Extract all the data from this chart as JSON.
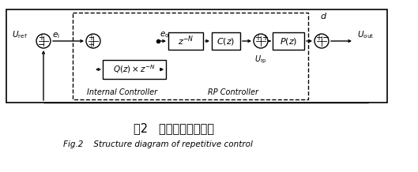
{
  "title_zh": "图2   重复控制器结构图",
  "title_en": "Fig.2    Structure diagram of repetitive control",
  "bg_color": "#ffffff",
  "line_color": "#000000",
  "figsize": [
    5.29,
    2.18
  ],
  "dpi": 100
}
